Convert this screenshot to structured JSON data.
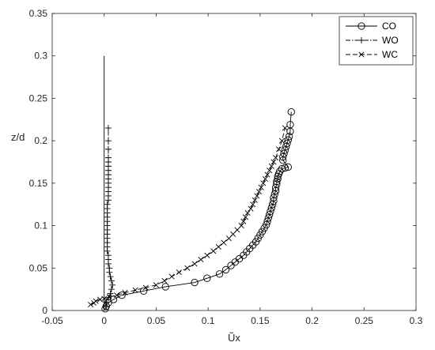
{
  "chart_data": {
    "type": "line",
    "title": "",
    "xlabel": "Ũx",
    "ylabel": "z/d",
    "xlim": [
      -0.05,
      0.3
    ],
    "ylim": [
      0,
      0.35
    ],
    "xticks": [
      -0.05,
      0,
      0.05,
      0.1,
      0.15,
      0.2,
      0.25,
      0.3
    ],
    "yticks": [
      0,
      0.05,
      0.1,
      0.15,
      0.2,
      0.25,
      0.3,
      0.35
    ],
    "xtick_labels": [
      "-0.05",
      "0",
      "0.05",
      "0.1",
      "0.15",
      "0.2",
      "0.25",
      "0.3"
    ],
    "ytick_labels": [
      "0",
      "0.05",
      "0.1",
      "0.15",
      "0.2",
      "0.25",
      "0.3",
      "0.35"
    ],
    "grid": false,
    "legend_position": "top-right",
    "series": [
      {
        "name": "CO",
        "line": "solid",
        "marker": "circle",
        "x": [
          0.001,
          0.002,
          0.004,
          0.009,
          0.017,
          0.038,
          0.059,
          0.087,
          0.099,
          0.111,
          0.117,
          0.122,
          0.126,
          0.13,
          0.134,
          0.137,
          0.14,
          0.143,
          0.146,
          0.148,
          0.15,
          0.152,
          0.154,
          0.156,
          0.157,
          0.158,
          0.159,
          0.16,
          0.161,
          0.162,
          0.163,
          0.163,
          0.164,
          0.165,
          0.165,
          0.166,
          0.166,
          0.167,
          0.167,
          0.168,
          0.169,
          0.171,
          0.174,
          0.177,
          0.172,
          0.172,
          0.173,
          0.174,
          0.175,
          0.176,
          0.177,
          0.178,
          0.179,
          0.179,
          0.18
        ],
        "y": [
          0.002,
          0.005,
          0.009,
          0.013,
          0.018,
          0.023,
          0.028,
          0.033,
          0.038,
          0.043,
          0.048,
          0.053,
          0.057,
          0.061,
          0.065,
          0.069,
          0.073,
          0.077,
          0.081,
          0.085,
          0.089,
          0.093,
          0.097,
          0.101,
          0.105,
          0.109,
          0.113,
          0.117,
          0.121,
          0.125,
          0.129,
          0.133,
          0.137,
          0.141,
          0.145,
          0.149,
          0.152,
          0.155,
          0.158,
          0.161,
          0.164,
          0.167,
          0.168,
          0.169,
          0.177,
          0.181,
          0.185,
          0.189,
          0.193,
          0.197,
          0.201,
          0.205,
          0.211,
          0.219,
          0.234
        ]
      },
      {
        "name": "WO",
        "line": "dashdot",
        "marker": "plus",
        "x": [
          0.002,
          0.002,
          0.004,
          0.006,
          0.007,
          0.008,
          0.007,
          0.006,
          0.005,
          0.005,
          0.004,
          0.004,
          0.004,
          0.003,
          0.003,
          0.003,
          0.003,
          0.003,
          0.003,
          0.003,
          0.003,
          0.003,
          0.003,
          0.003,
          0.003,
          0.004,
          0.004,
          0.004,
          0.004,
          0.004,
          0.004,
          0.004,
          0.004,
          0.004,
          0.004,
          0.004,
          0.004,
          0.004,
          0.004
        ],
        "y": [
          0.005,
          0.01,
          0.015,
          0.02,
          0.025,
          0.03,
          0.035,
          0.04,
          0.045,
          0.05,
          0.055,
          0.06,
          0.065,
          0.07,
          0.075,
          0.08,
          0.085,
          0.09,
          0.095,
          0.1,
          0.105,
          0.11,
          0.115,
          0.12,
          0.125,
          0.13,
          0.135,
          0.14,
          0.145,
          0.15,
          0.155,
          0.16,
          0.165,
          0.17,
          0.175,
          0.18,
          0.19,
          0.2,
          0.215
        ]
      },
      {
        "name": "WC",
        "line": "dashed",
        "marker": "x",
        "x": [
          -0.013,
          -0.01,
          -0.008,
          -0.004,
          0.0,
          0.005,
          0.012,
          0.02,
          0.03,
          0.04,
          0.05,
          0.058,
          0.065,
          0.072,
          0.08,
          0.087,
          0.093,
          0.099,
          0.105,
          0.11,
          0.115,
          0.12,
          0.124,
          0.128,
          0.132,
          0.134,
          0.136,
          0.138,
          0.141,
          0.143,
          0.145,
          0.147,
          0.149,
          0.151,
          0.153,
          0.155,
          0.157,
          0.159,
          0.161,
          0.163,
          0.165,
          0.168,
          0.171,
          0.174
        ],
        "y": [
          0.007,
          0.009,
          0.011,
          0.013,
          0.014,
          0.016,
          0.018,
          0.021,
          0.024,
          0.027,
          0.03,
          0.035,
          0.04,
          0.045,
          0.05,
          0.055,
          0.06,
          0.065,
          0.07,
          0.075,
          0.08,
          0.085,
          0.09,
          0.095,
          0.1,
          0.105,
          0.11,
          0.115,
          0.12,
          0.125,
          0.13,
          0.135,
          0.14,
          0.145,
          0.15,
          0.155,
          0.16,
          0.165,
          0.17,
          0.175,
          0.18,
          0.19,
          0.2,
          0.215
        ]
      },
      {
        "name": "",
        "line": "solid",
        "marker": "none",
        "x": [
          0.0,
          0.0
        ],
        "y": [
          0.0,
          0.3
        ]
      }
    ]
  }
}
